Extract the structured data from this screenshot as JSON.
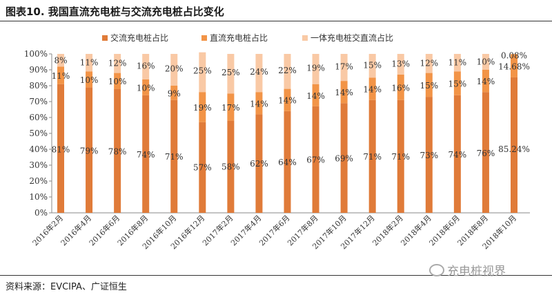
{
  "header": {
    "title": "图表10.  我国直流充电桩与交流充电桩占比变化"
  },
  "footer": {
    "source": "资料来源：EVCIPA、广证恒生",
    "watermark": "充电桩视界"
  },
  "colors": {
    "ac": "#E07B39",
    "dc": "#F29447",
    "integrated": "#F9C9A5"
  },
  "chart_data": {
    "type": "bar",
    "stacked": true,
    "title": "我国直流充电桩与交流充电桩占比变化",
    "categories": [
      "2016年2月",
      "2016年4月",
      "2016年6月",
      "2016年8月",
      "2016年10月",
      "2016年12月",
      "2017年2月",
      "2017年4月",
      "2017年6月",
      "2017年8月",
      "2017年10月",
      "2017年12月",
      "2018年2月",
      "2018年4月",
      "2018年6月",
      "2018年8月",
      "2018年10月"
    ],
    "series": [
      {
        "name": "交流充电桩占比",
        "values": [
          81,
          79,
          78,
          74,
          71,
          57,
          58,
          62,
          64,
          67,
          69,
          71,
          71,
          73,
          74,
          76,
          85.24
        ],
        "labels": [
          "81%",
          "79%",
          "78%",
          "74%",
          "71%",
          "57%",
          "58%",
          "62%",
          "64%",
          "67%",
          "69%",
          "71%",
          "71%",
          "73%",
          "74%",
          "76%",
          "85.24%"
        ]
      },
      {
        "name": "直流充电桩占比",
        "values": [
          11,
          10,
          10,
          10,
          9,
          19,
          17,
          14,
          14,
          14,
          14,
          14,
          16,
          15,
          15,
          14,
          14.68
        ],
        "labels": [
          "11%",
          "10%",
          "10%",
          "10%",
          "9%",
          "19%",
          "17%",
          "14%",
          "14%",
          "14%",
          "14%",
          "14%",
          "16%",
          "15%",
          "15%",
          "14%",
          "14.68%"
        ]
      },
      {
        "name": "一体充电桩交直流占比",
        "values": [
          8,
          11,
          12,
          16,
          20,
          25,
          25,
          24,
          22,
          19,
          17,
          15,
          13,
          12,
          11,
          10,
          0.08
        ],
        "labels": [
          "8%",
          "11%",
          "12%",
          "16%",
          "20%",
          "25%",
          "25%",
          "24%",
          "22%",
          "19%",
          "17%",
          "15%",
          "13%",
          "12%",
          "11%",
          "10%",
          "0.08%"
        ]
      }
    ],
    "yticks": [
      "0%",
      "10%",
      "20%",
      "30%",
      "40%",
      "50%",
      "60%",
      "70%",
      "80%",
      "90%",
      "100%"
    ],
    "ylim": [
      0,
      100
    ],
    "legend": "top",
    "grid": false
  }
}
